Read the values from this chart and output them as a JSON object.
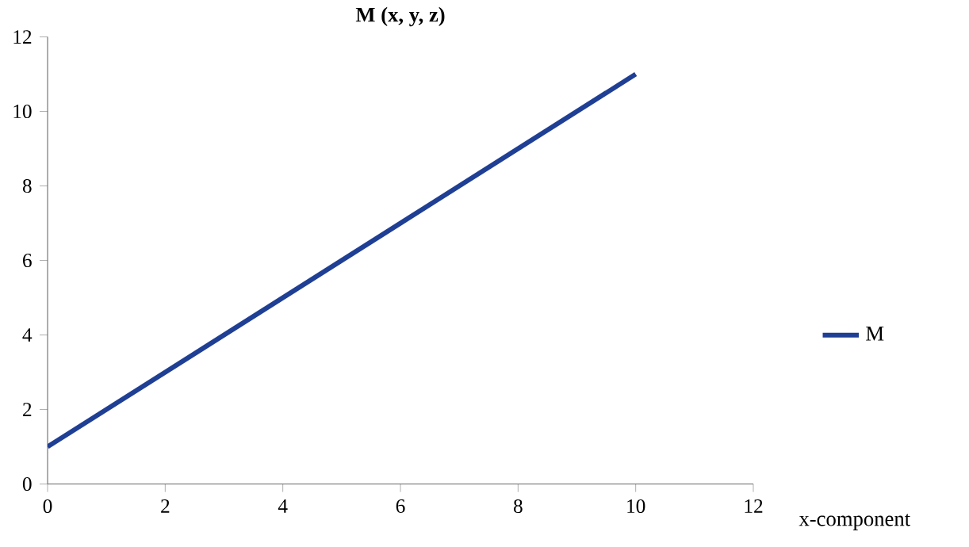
{
  "chart_data": {
    "type": "line",
    "title": "M (x, y, z)",
    "xlabel": "x-component",
    "x": [
      0,
      10
    ],
    "series": [
      {
        "name": "M",
        "color": "#1f3f94",
        "values": [
          1,
          11
        ]
      }
    ],
    "xlim": [
      0,
      12
    ],
    "xticks": [
      0,
      2,
      4,
      6,
      8,
      10,
      12
    ],
    "ylim": [
      0,
      12
    ],
    "yticks": [
      0,
      2,
      4,
      6,
      8,
      10,
      12
    ],
    "grid": false,
    "legend": "right",
    "marker": "none",
    "line_style": "solid"
  }
}
